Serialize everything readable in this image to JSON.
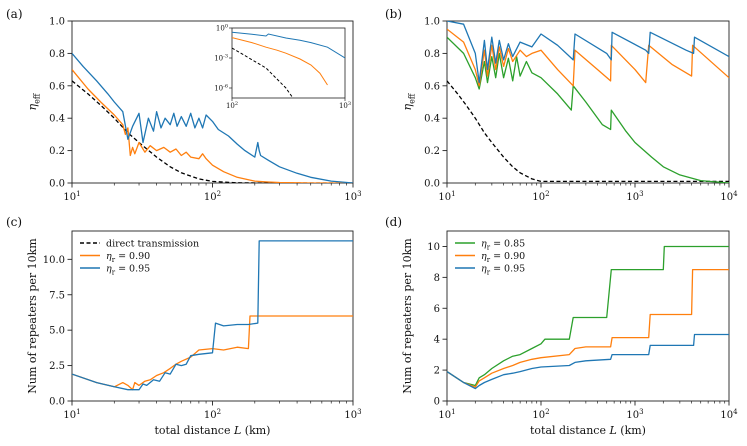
{
  "chart_data": [
    {
      "panel": "(a)",
      "type": "line",
      "xscale": "log",
      "xlim": [
        10,
        1000
      ],
      "ylim": [
        0,
        1.0
      ],
      "xticks": [
        10,
        100,
        1000
      ],
      "xtick_labels": [
        "10^1",
        "10^2",
        "10^3"
      ],
      "yticks": [
        0,
        0.2,
        0.4,
        0.6,
        0.8,
        1.0
      ],
      "ytick_labels": [
        "0.0",
        "0.2",
        "0.4",
        "0.6",
        "0.8",
        "1.0"
      ],
      "xlabel": "",
      "ylabel": "η_eff",
      "series": [
        {
          "name": "direct transmission",
          "color": "#000000",
          "style": "dashed",
          "x": [
            10,
            13,
            16,
            20,
            25,
            30,
            40,
            50,
            60,
            80,
            100,
            150,
            200,
            300,
            500,
            1000
          ],
          "y": [
            0.63,
            0.55,
            0.48,
            0.4,
            0.31,
            0.25,
            0.16,
            0.1,
            0.063,
            0.025,
            0.01,
            0.001,
            0.0001,
            0,
            0,
            0
          ]
        },
        {
          "name": "η_r = 0.90",
          "color": "#ff7f0e",
          "style": "solid",
          "x": [
            10,
            13,
            16,
            20,
            23,
            24,
            25,
            26,
            27,
            28,
            30,
            33,
            36,
            40,
            45,
            50,
            55,
            60,
            65,
            70,
            80,
            85,
            90,
            100,
            120,
            150,
            180,
            200,
            250,
            300,
            400,
            500,
            1000
          ],
          "y": [
            0.7,
            0.58,
            0.5,
            0.42,
            0.36,
            0.3,
            0.34,
            0.17,
            0.22,
            0.18,
            0.25,
            0.19,
            0.23,
            0.2,
            0.22,
            0.19,
            0.21,
            0.17,
            0.19,
            0.16,
            0.15,
            0.18,
            0.15,
            0.11,
            0.07,
            0.035,
            0.02,
            0.012,
            0.006,
            0.003,
            0.001,
            0,
            0
          ]
        },
        {
          "name": "η_r = 0.95",
          "color": "#1f77b4",
          "style": "solid",
          "x": [
            10,
            12,
            15,
            18,
            20,
            23,
            25,
            27,
            30,
            32,
            35,
            38,
            40,
            43,
            46,
            50,
            53,
            56,
            60,
            65,
            70,
            75,
            80,
            85,
            90,
            100,
            110,
            130,
            150,
            170,
            200,
            210,
            215,
            220,
            250,
            300,
            400,
            500,
            700,
            1000
          ],
          "y": [
            0.8,
            0.72,
            0.63,
            0.55,
            0.5,
            0.44,
            0.27,
            0.35,
            0.43,
            0.25,
            0.4,
            0.32,
            0.44,
            0.34,
            0.4,
            0.36,
            0.43,
            0.35,
            0.41,
            0.35,
            0.43,
            0.34,
            0.4,
            0.34,
            0.42,
            0.38,
            0.33,
            0.29,
            0.24,
            0.2,
            0.16,
            0.25,
            0.2,
            0.17,
            0.14,
            0.1,
            0.06,
            0.035,
            0.012,
            0
          ]
        }
      ],
      "inset": {
        "xscale": "log",
        "yscale": "log",
        "xlim": [
          100,
          1000
        ],
        "ylim": [
          1e-07,
          1
        ],
        "xtick_labels": [
          "10^2",
          "10^3"
        ],
        "ytick_labels": [
          "10^0",
          "10^-3",
          "10^-6"
        ],
        "series": [
          {
            "name": "direct transmission",
            "color": "#000000",
            "style": "dashed",
            "x": [
              100,
              200,
              300,
              400
            ],
            "y": [
              0.01,
              0.0001,
              1e-06,
              1e-08
            ]
          },
          {
            "name": "η_r = 0.90",
            "color": "#ff7f0e",
            "style": "solid",
            "x": [
              100,
              150,
              200,
              250,
              300,
              400,
              500,
              600,
              700
            ],
            "y": [
              0.11,
              0.035,
              0.012,
              0.006,
              0.003,
              0.0008,
              0.0002,
              3e-05,
              2e-06
            ]
          },
          {
            "name": "η_r = 0.95",
            "color": "#1f77b4",
            "style": "solid",
            "x": [
              100,
              150,
              200,
              210,
              300,
              400,
              500,
              700,
              1000
            ],
            "y": [
              0.38,
              0.24,
              0.16,
              0.25,
              0.1,
              0.06,
              0.035,
              0.012,
              0.001
            ]
          }
        ]
      }
    },
    {
      "panel": "(b)",
      "type": "line",
      "xscale": "log",
      "xlim": [
        10,
        10000
      ],
      "ylim": [
        0,
        1.0
      ],
      "xticks": [
        10,
        100,
        1000,
        10000
      ],
      "xtick_labels": [
        "10^1",
        "10^2",
        "10^3",
        "10^4"
      ],
      "yticks": [
        0,
        0.2,
        0.4,
        0.6,
        0.8,
        1.0
      ],
      "ytick_labels": [
        "0.0",
        "0.2",
        "0.4",
        "0.6",
        "0.8",
        "1.0"
      ],
      "xlabel": "",
      "ylabel": "η_eff",
      "series": [
        {
          "name": "direct transmission",
          "color": "#000000",
          "style": "dashed",
          "x": [
            10,
            13,
            16,
            20,
            25,
            30,
            40,
            50,
            60,
            80,
            100,
            10000
          ],
          "y": [
            0.63,
            0.55,
            0.48,
            0.4,
            0.31,
            0.25,
            0.16,
            0.1,
            0.063,
            0.025,
            0.01,
            0.01
          ]
        },
        {
          "name": "η_r = 0.85",
          "color": "#2ca02c",
          "style": "solid",
          "x": [
            10,
            15,
            20,
            22,
            25,
            27,
            30,
            33,
            36,
            40,
            45,
            50,
            55,
            60,
            70,
            80,
            100,
            150,
            210,
            220,
            300,
            450,
            550,
            560,
            800,
            1000,
            1500,
            2000,
            3000,
            5000,
            10000
          ],
          "y": [
            0.9,
            0.8,
            0.65,
            0.58,
            0.75,
            0.62,
            0.78,
            0.65,
            0.8,
            0.65,
            0.77,
            0.63,
            0.78,
            0.66,
            0.75,
            0.68,
            0.65,
            0.55,
            0.45,
            0.6,
            0.5,
            0.36,
            0.33,
            0.45,
            0.32,
            0.25,
            0.16,
            0.1,
            0.05,
            0.015,
            0
          ]
        },
        {
          "name": "η_r = 0.90",
          "color": "#ff7f0e",
          "style": "solid",
          "x": [
            10,
            15,
            20,
            22,
            25,
            27,
            30,
            33,
            36,
            40,
            45,
            50,
            60,
            70,
            80,
            100,
            150,
            220,
            230,
            400,
            550,
            560,
            1000,
            1300,
            1400,
            2500,
            4000,
            4100,
            10000
          ],
          "y": [
            0.95,
            0.87,
            0.7,
            0.6,
            0.82,
            0.66,
            0.85,
            0.7,
            0.84,
            0.72,
            0.83,
            0.75,
            0.82,
            0.78,
            0.8,
            0.82,
            0.7,
            0.6,
            0.82,
            0.7,
            0.63,
            0.85,
            0.7,
            0.62,
            0.85,
            0.73,
            0.66,
            0.85,
            0.65
          ]
        },
        {
          "name": "η_r = 0.95",
          "color": "#1f77b4",
          "style": "solid",
          "x": [
            10,
            15,
            20,
            22,
            25,
            27,
            30,
            33,
            36,
            40,
            45,
            50,
            60,
            80,
            100,
            150,
            220,
            230,
            500,
            560,
            570,
            1300,
            1400,
            1450,
            3500,
            4200,
            4300,
            10000
          ],
          "y": [
            1.0,
            0.98,
            0.8,
            0.62,
            0.88,
            0.7,
            0.9,
            0.74,
            0.88,
            0.76,
            0.86,
            0.78,
            0.87,
            0.84,
            0.92,
            0.85,
            0.76,
            0.92,
            0.8,
            0.76,
            0.93,
            0.82,
            0.8,
            0.93,
            0.82,
            0.8,
            0.9,
            0.78
          ]
        }
      ]
    },
    {
      "panel": "(c)",
      "type": "line",
      "xscale": "log",
      "xlim": [
        10,
        1000
      ],
      "ylim": [
        0,
        12
      ],
      "xticks": [
        10,
        100,
        1000
      ],
      "xtick_labels": [
        "10^1",
        "10^2",
        "10^3"
      ],
      "yticks": [
        0,
        2.5,
        5.0,
        7.5,
        10.0
      ],
      "ytick_labels": [
        "0.0",
        "2.5",
        "5.0",
        "7.5",
        "10.0"
      ],
      "xlabel": "total distance L (km)",
      "ylabel": "Num of repeaters per 10km",
      "legend": [
        "direct transmission",
        "η_r = 0.90",
        "η_r = 0.95"
      ],
      "series": [
        {
          "name": "η_r = 0.90",
          "color": "#ff7f0e",
          "style": "solid",
          "x": [
            10,
            15,
            20,
            23,
            25,
            27,
            28,
            30,
            33,
            36,
            40,
            45,
            50,
            55,
            60,
            70,
            80,
            100,
            120,
            150,
            180,
            185,
            300,
            1000
          ],
          "y": [
            1.9,
            1.3,
            1.0,
            1.3,
            1.1,
            0.8,
            1.3,
            1.1,
            1.4,
            1.5,
            1.8,
            2.0,
            2.3,
            2.6,
            2.8,
            3.1,
            3.6,
            3.7,
            3.6,
            3.8,
            3.7,
            6.0,
            6.0,
            6.0
          ]
        },
        {
          "name": "η_r = 0.95",
          "color": "#1f77b4",
          "style": "solid",
          "x": [
            10,
            15,
            20,
            25,
            30,
            32,
            34,
            38,
            42,
            46,
            50,
            55,
            60,
            65,
            70,
            80,
            100,
            105,
            120,
            150,
            180,
            210,
            215,
            300,
            1000
          ],
          "y": [
            1.9,
            1.3,
            1.0,
            0.8,
            0.8,
            1.2,
            1.1,
            1.5,
            1.4,
            2.0,
            1.9,
            2.6,
            2.5,
            2.6,
            3.2,
            3.3,
            3.4,
            5.5,
            5.3,
            5.4,
            5.4,
            5.5,
            11.3,
            11.3,
            11.3
          ]
        }
      ]
    },
    {
      "panel": "(d)",
      "type": "line",
      "xscale": "log",
      "xlim": [
        10,
        10000
      ],
      "ylim": [
        0,
        11
      ],
      "xticks": [
        10,
        100,
        1000,
        10000
      ],
      "xtick_labels": [
        "10^1",
        "10^2",
        "10^3",
        "10^4"
      ],
      "yticks": [
        0,
        2,
        4,
        6,
        8,
        10
      ],
      "ytick_labels": [
        "0",
        "2",
        "4",
        "6",
        "8",
        "10"
      ],
      "xlabel": "total distance L (km)",
      "ylabel": "Num of repeaters per 10km",
      "legend": [
        "η_r = 0.85",
        "η_r = 0.90",
        "η_r = 0.95"
      ],
      "series": [
        {
          "name": "η_r = 0.85",
          "color": "#2ca02c",
          "style": "solid",
          "x": [
            10,
            15,
            20,
            22,
            25,
            30,
            40,
            50,
            60,
            80,
            100,
            110,
            200,
            220,
            300,
            500,
            560,
            1000,
            2000,
            2050,
            10000
          ],
          "y": [
            1.9,
            1.2,
            1.0,
            1.5,
            1.7,
            2.1,
            2.6,
            2.9,
            3.0,
            3.4,
            3.7,
            4.0,
            4.0,
            5.4,
            5.4,
            5.4,
            8.5,
            8.5,
            8.5,
            10.0,
            10.0
          ]
        },
        {
          "name": "η_r = 0.90",
          "color": "#ff7f0e",
          "style": "solid",
          "x": [
            10,
            15,
            20,
            22,
            25,
            30,
            40,
            50,
            60,
            80,
            100,
            200,
            230,
            300,
            550,
            570,
            1000,
            1400,
            1450,
            2000,
            4000,
            4100,
            10000
          ],
          "y": [
            1.9,
            1.2,
            0.9,
            1.3,
            1.5,
            1.8,
            2.1,
            2.3,
            2.5,
            2.7,
            2.8,
            3.0,
            3.4,
            3.5,
            3.5,
            4.1,
            4.1,
            4.1,
            5.6,
            5.6,
            5.6,
            8.5,
            8.5
          ]
        },
        {
          "name": "η_r = 0.95",
          "color": "#1f77b4",
          "style": "solid",
          "x": [
            10,
            15,
            20,
            22,
            25,
            30,
            40,
            50,
            60,
            80,
            100,
            200,
            230,
            300,
            550,
            570,
            1000,
            1400,
            1450,
            2000,
            4200,
            4300,
            10000
          ],
          "y": [
            1.9,
            1.2,
            0.8,
            1.0,
            1.2,
            1.4,
            1.7,
            1.8,
            1.9,
            2.1,
            2.2,
            2.3,
            2.5,
            2.6,
            2.7,
            3.0,
            3.0,
            3.0,
            3.6,
            3.6,
            3.6,
            4.3,
            4.3
          ]
        }
      ]
    }
  ]
}
